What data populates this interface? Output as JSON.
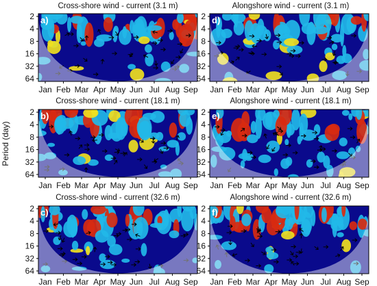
{
  "figure": {
    "ylabel": "Period (day)",
    "colors": {
      "low": "#0a0a8c",
      "mid": "#22b8e8",
      "high": "#f0e020",
      "peak": "#d82a10",
      "cone": "#ffffff"
    }
  },
  "chart_data": [
    {
      "id": "a",
      "type": "heatmap",
      "title": "Cross-shore wind - current (3.1 m)",
      "panel_label": "a)",
      "x_tick_labels": [
        "Jan",
        "Feb",
        "Mar",
        "Apr",
        "May",
        "Jun",
        "Jul",
        "Aug",
        "Sep"
      ],
      "y_tick_labels": [
        "2",
        "4",
        "8",
        "16",
        "32",
        "64"
      ],
      "ylabel": "Period (day)",
      "y_scale": "log2"
    },
    {
      "id": "d",
      "type": "heatmap",
      "title": "Alongshore wind - current (3.1 m)",
      "panel_label": "d)",
      "x_tick_labels": [
        "Jan",
        "Feb",
        "Mar",
        "Apr",
        "May",
        "Jun",
        "Jul",
        "Aug",
        "Sep"
      ],
      "y_tick_labels": [
        "2",
        "4",
        "8",
        "16",
        "32",
        "64"
      ],
      "y_scale": "log2"
    },
    {
      "id": "b",
      "type": "heatmap",
      "title": "Cross-shore wind - current (18.1 m)",
      "panel_label": "b)",
      "x_tick_labels": [
        "Jan",
        "Feb",
        "Mar",
        "Apr",
        "May",
        "Jun",
        "Jul",
        "Aug",
        "Sep"
      ],
      "y_tick_labels": [
        "2",
        "4",
        "8",
        "16",
        "32",
        "64"
      ],
      "y_scale": "log2"
    },
    {
      "id": "e",
      "type": "heatmap",
      "title": "Alongshore wind - current (18.1 m)",
      "panel_label": "e)",
      "x_tick_labels": [
        "Jan",
        "Feb",
        "Mar",
        "Apr",
        "May",
        "Jun",
        "Jul",
        "Aug",
        "Sep"
      ],
      "y_tick_labels": [
        "2",
        "4",
        "8",
        "16",
        "32",
        "64"
      ],
      "y_scale": "log2"
    },
    {
      "id": "c",
      "type": "heatmap",
      "title": "Cross-shore wind - current (32.6 m)",
      "panel_label": "c)",
      "x_tick_labels": [
        "Jan",
        "Feb",
        "Mar",
        "Apr",
        "May",
        "Jun",
        "Jul",
        "Aug",
        "Sep"
      ],
      "y_tick_labels": [
        "2",
        "4",
        "8",
        "16",
        "32",
        "64"
      ],
      "y_scale": "log2"
    },
    {
      "id": "f",
      "type": "heatmap",
      "title": "Alongshore wind - current (32.6 m)",
      "panel_label": "f)",
      "x_tick_labels": [
        "Jan",
        "Feb",
        "Mar",
        "Apr",
        "May",
        "Jun",
        "Jul",
        "Aug",
        "Sep"
      ],
      "y_tick_labels": [
        "2",
        "4",
        "8",
        "16",
        "32",
        "64"
      ],
      "y_scale": "log2"
    }
  ]
}
